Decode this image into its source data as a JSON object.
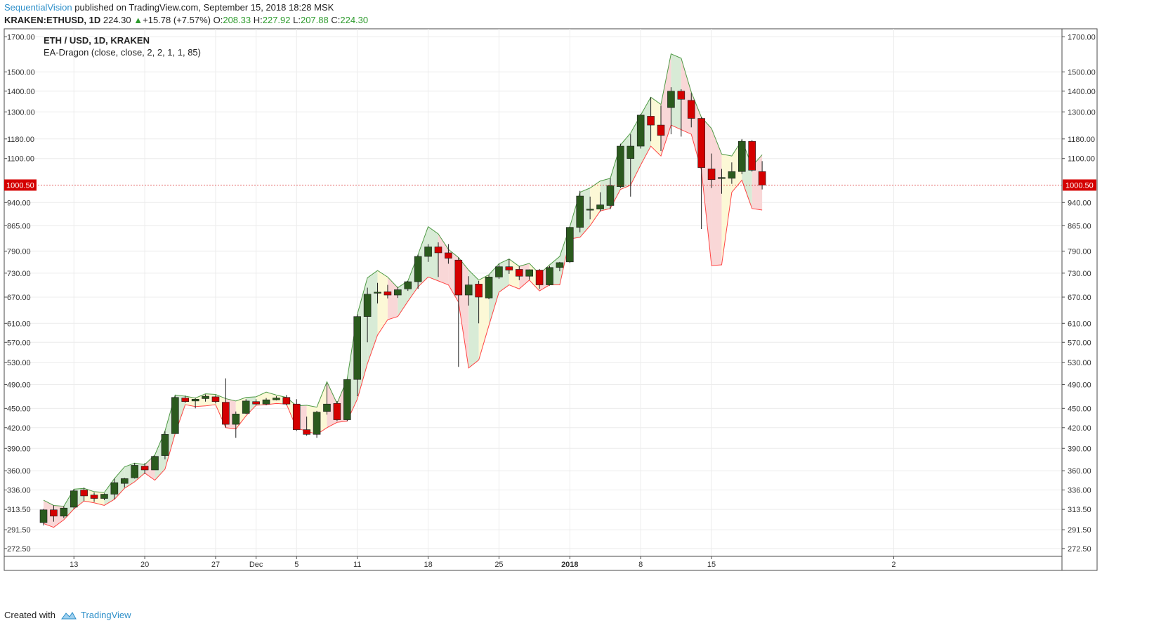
{
  "header": {
    "author": "SequentialVision",
    "published": "published on TradingView.com, September 15, 2018 18:28 MSK",
    "symbol": "KRAKEN:ETHUSD, 1D",
    "last": "224.30",
    "change": "+15.78 (+7.57%)",
    "o_label": "O:",
    "o_val": "208.33",
    "h_label": "H:",
    "h_val": "227.92",
    "l_label": "L:",
    "l_val": "207.88",
    "c_label": "C:",
    "c_val": "224.30"
  },
  "legend": {
    "main": "ETH / USD, 1D, KRAKEN",
    "indicator": "EA-Dragon (close, close, 2, 2, 1, 1, 85)"
  },
  "footer": {
    "created_with": "Created with",
    "brand": "TradingView"
  },
  "colors": {
    "bull": "#2b5a1e",
    "bear": "#d40000",
    "band_up_line": "#4f9a45",
    "band_down_line": "#ff4444",
    "fill_green": "#d8ebd6",
    "fill_red": "#f9d7d7",
    "fill_yellow": "#fcf8d6",
    "price_badge": "#d40000"
  },
  "chart_data": {
    "type": "candlestick",
    "scale": "log",
    "ylim": [
      265,
      1750
    ],
    "y_ticks": [
      272.5,
      291.5,
      313.5,
      336,
      360,
      390,
      420,
      450,
      490,
      530,
      570,
      610,
      670,
      730,
      790,
      865,
      940,
      1100,
      1180,
      1300,
      1400,
      1500,
      1700
    ],
    "y_tick_labels": [
      "272.50",
      "291.50",
      "313.50",
      "336.00",
      "360.00",
      "390.00",
      "420.00",
      "450.00",
      "490.00",
      "530.00",
      "570.00",
      "610.00",
      "670.00",
      "730.00",
      "790.00",
      "865.00",
      "940.00",
      "1100.00",
      "1180.00",
      "1300.00",
      "1400.00",
      "1500.00",
      "1700.00"
    ],
    "x_ticks": [
      {
        "label": "13",
        "index": 3,
        "bold": false
      },
      {
        "label": "20",
        "index": 10,
        "bold": false
      },
      {
        "label": "27",
        "index": 17,
        "bold": false
      },
      {
        "label": "Dec",
        "index": 21,
        "bold": false
      },
      {
        "label": "5",
        "index": 25,
        "bold": false
      },
      {
        "label": "11",
        "index": 31,
        "bold": false
      },
      {
        "label": "18",
        "index": 38,
        "bold": false
      },
      {
        "label": "25",
        "index": 45,
        "bold": false
      },
      {
        "label": "2018",
        "index": 52,
        "bold": true
      },
      {
        "label": "8",
        "index": 59,
        "bold": false
      },
      {
        "label": "15",
        "index": 66,
        "bold": false
      },
      {
        "label": "2",
        "index": 84,
        "bold": false
      }
    ],
    "price_badge": {
      "label": "1000.50",
      "value": 1000.5
    },
    "candles": [
      {
        "o": 299,
        "h": 314,
        "l": 296,
        "c": 313
      },
      {
        "o": 313,
        "h": 318,
        "l": 300,
        "c": 306
      },
      {
        "o": 306,
        "h": 317,
        "l": 304,
        "c": 315
      },
      {
        "o": 316,
        "h": 337,
        "l": 314,
        "c": 335
      },
      {
        "o": 336,
        "h": 339,
        "l": 323,
        "c": 329
      },
      {
        "o": 330,
        "h": 333,
        "l": 322,
        "c": 326
      },
      {
        "o": 326,
        "h": 332,
        "l": 324,
        "c": 331
      },
      {
        "o": 331,
        "h": 350,
        "l": 325,
        "c": 345
      },
      {
        "o": 344,
        "h": 351,
        "l": 339,
        "c": 350
      },
      {
        "o": 351,
        "h": 370,
        "l": 350,
        "c": 367
      },
      {
        "o": 366,
        "h": 370,
        "l": 356,
        "c": 361
      },
      {
        "o": 361,
        "h": 380,
        "l": 361,
        "c": 379
      },
      {
        "o": 380,
        "h": 415,
        "l": 375,
        "c": 410
      },
      {
        "o": 411,
        "h": 471,
        "l": 411,
        "c": 468
      },
      {
        "o": 467,
        "h": 471,
        "l": 459,
        "c": 461
      },
      {
        "o": 462,
        "h": 467,
        "l": 450,
        "c": 465
      },
      {
        "o": 466,
        "h": 473,
        "l": 461,
        "c": 470
      },
      {
        "o": 469,
        "h": 472,
        "l": 458,
        "c": 461
      },
      {
        "o": 460,
        "h": 501,
        "l": 420,
        "c": 425
      },
      {
        "o": 425,
        "h": 445,
        "l": 405,
        "c": 441
      },
      {
        "o": 442,
        "h": 465,
        "l": 441,
        "c": 462
      },
      {
        "o": 461,
        "h": 465,
        "l": 455,
        "c": 457
      },
      {
        "o": 457,
        "h": 467,
        "l": 455,
        "c": 464
      },
      {
        "o": 464,
        "h": 470,
        "l": 463,
        "c": 467
      },
      {
        "o": 468,
        "h": 472,
        "l": 455,
        "c": 457
      },
      {
        "o": 457,
        "h": 465,
        "l": 415,
        "c": 417
      },
      {
        "o": 417,
        "h": 437,
        "l": 408,
        "c": 410
      },
      {
        "o": 410,
        "h": 446,
        "l": 405,
        "c": 444
      },
      {
        "o": 445,
        "h": 492,
        "l": 440,
        "c": 457
      },
      {
        "o": 458,
        "h": 462,
        "l": 430,
        "c": 432
      },
      {
        "o": 432,
        "h": 500,
        "l": 430,
        "c": 499
      },
      {
        "o": 499,
        "h": 630,
        "l": 470,
        "c": 625
      },
      {
        "o": 625,
        "h": 693,
        "l": 570,
        "c": 677
      },
      {
        "o": 680,
        "h": 705,
        "l": 655,
        "c": 682
      },
      {
        "o": 683,
        "h": 700,
        "l": 667,
        "c": 675
      },
      {
        "o": 675,
        "h": 695,
        "l": 668,
        "c": 688
      },
      {
        "o": 690,
        "h": 710,
        "l": 685,
        "c": 708
      },
      {
        "o": 708,
        "h": 780,
        "l": 690,
        "c": 775
      },
      {
        "o": 775,
        "h": 810,
        "l": 760,
        "c": 802
      },
      {
        "o": 802,
        "h": 815,
        "l": 720,
        "c": 785
      },
      {
        "o": 785,
        "h": 810,
        "l": 755,
        "c": 770
      },
      {
        "o": 765,
        "h": 772,
        "l": 522,
        "c": 675
      },
      {
        "o": 675,
        "h": 722,
        "l": 650,
        "c": 700
      },
      {
        "o": 702,
        "h": 710,
        "l": 610,
        "c": 670
      },
      {
        "o": 668,
        "h": 725,
        "l": 665,
        "c": 720
      },
      {
        "o": 720,
        "h": 755,
        "l": 715,
        "c": 747
      },
      {
        "o": 747,
        "h": 768,
        "l": 728,
        "c": 738
      },
      {
        "o": 740,
        "h": 748,
        "l": 712,
        "c": 722
      },
      {
        "o": 722,
        "h": 740,
        "l": 713,
        "c": 739
      },
      {
        "o": 738,
        "h": 741,
        "l": 690,
        "c": 700
      },
      {
        "o": 700,
        "h": 749,
        "l": 698,
        "c": 745
      },
      {
        "o": 745,
        "h": 760,
        "l": 735,
        "c": 758
      },
      {
        "o": 760,
        "h": 862,
        "l": 757,
        "c": 860
      },
      {
        "o": 860,
        "h": 980,
        "l": 845,
        "c": 962
      },
      {
        "o": 915,
        "h": 960,
        "l": 885,
        "c": 918
      },
      {
        "o": 918,
        "h": 975,
        "l": 910,
        "c": 932
      },
      {
        "o": 930,
        "h": 1025,
        "l": 918,
        "c": 998
      },
      {
        "o": 995,
        "h": 1160,
        "l": 990,
        "c": 1150
      },
      {
        "o": 1100,
        "h": 1200,
        "l": 960,
        "c": 1150
      },
      {
        "o": 1150,
        "h": 1290,
        "l": 1140,
        "c": 1285
      },
      {
        "o": 1280,
        "h": 1370,
        "l": 1170,
        "c": 1240
      },
      {
        "o": 1240,
        "h": 1330,
        "l": 1130,
        "c": 1195
      },
      {
        "o": 1320,
        "h": 1420,
        "l": 1200,
        "c": 1400
      },
      {
        "o": 1400,
        "h": 1410,
        "l": 1190,
        "c": 1360
      },
      {
        "o": 1355,
        "h": 1390,
        "l": 1230,
        "c": 1270
      },
      {
        "o": 1270,
        "h": 1275,
        "l": 855,
        "c": 1065
      },
      {
        "o": 1060,
        "h": 1120,
        "l": 990,
        "c": 1020
      },
      {
        "o": 1025,
        "h": 1060,
        "l": 970,
        "c": 1028
      },
      {
        "o": 1025,
        "h": 1085,
        "l": 1005,
        "c": 1050
      },
      {
        "o": 1050,
        "h": 1180,
        "l": 1040,
        "c": 1170
      },
      {
        "o": 1170,
        "h": 1175,
        "l": 1050,
        "c": 1055
      },
      {
        "o": 1050,
        "h": 1090,
        "l": 985,
        "c": 1000.5
      }
    ],
    "band_upper": [
      324,
      318,
      317,
      337,
      338,
      334,
      333,
      350,
      365,
      370,
      368,
      381,
      415,
      472,
      470,
      467,
      474,
      473,
      466,
      462,
      468,
      469,
      477,
      472,
      468,
      454,
      455,
      452,
      495,
      458,
      500,
      630,
      718,
      737,
      720,
      693,
      710,
      780,
      862,
      840,
      795,
      772,
      738,
      712,
      726,
      755,
      768,
      748,
      756,
      728,
      752,
      775,
      862,
      975,
      990,
      1015,
      1025,
      1155,
      1205,
      1285,
      1370,
      1335,
      1600,
      1575,
      1395,
      1275,
      1225,
      1118,
      1110,
      1175,
      1070,
      1115
    ],
    "band_lower": [
      298,
      294,
      302,
      314,
      323,
      321,
      318,
      325,
      338,
      346,
      357,
      348,
      362,
      411,
      456,
      453,
      454,
      456,
      420,
      418,
      438,
      455,
      456,
      458,
      457,
      419,
      415,
      410,
      420,
      428,
      430,
      465,
      528,
      585,
      618,
      625,
      660,
      695,
      720,
      710,
      700,
      658,
      520,
      535,
      605,
      682,
      700,
      690,
      712,
      685,
      700,
      700,
      825,
      830,
      865,
      912,
      920,
      985,
      1000,
      1075,
      1150,
      1110,
      1240,
      1220,
      1200,
      1055,
      750,
      752,
      975,
      1018,
      920,
      915
    ],
    "band_colors": [
      "red",
      "red",
      "green",
      "green",
      "yellow",
      "yellow",
      "green",
      "green",
      "green",
      "green",
      "red",
      "green",
      "green",
      "green",
      "yellow",
      "yellow",
      "yellow",
      "yellow",
      "red",
      "yellow",
      "green",
      "yellow",
      "yellow",
      "yellow",
      "yellow",
      "red",
      "yellow",
      "yellow",
      "red",
      "red",
      "green",
      "green",
      "green",
      "yellow",
      "red",
      "green",
      "green",
      "green",
      "green",
      "red",
      "red",
      "red",
      "green",
      "yellow",
      "green",
      "green",
      "yellow",
      "red",
      "yellow",
      "red",
      "green",
      "green",
      "green",
      "green",
      "yellow",
      "green",
      "green",
      "green",
      "green",
      "green",
      "yellow",
      "red",
      "green",
      "red",
      "red",
      "red",
      "red",
      "yellow",
      "yellow",
      "green",
      "red",
      "yellow"
    ]
  }
}
